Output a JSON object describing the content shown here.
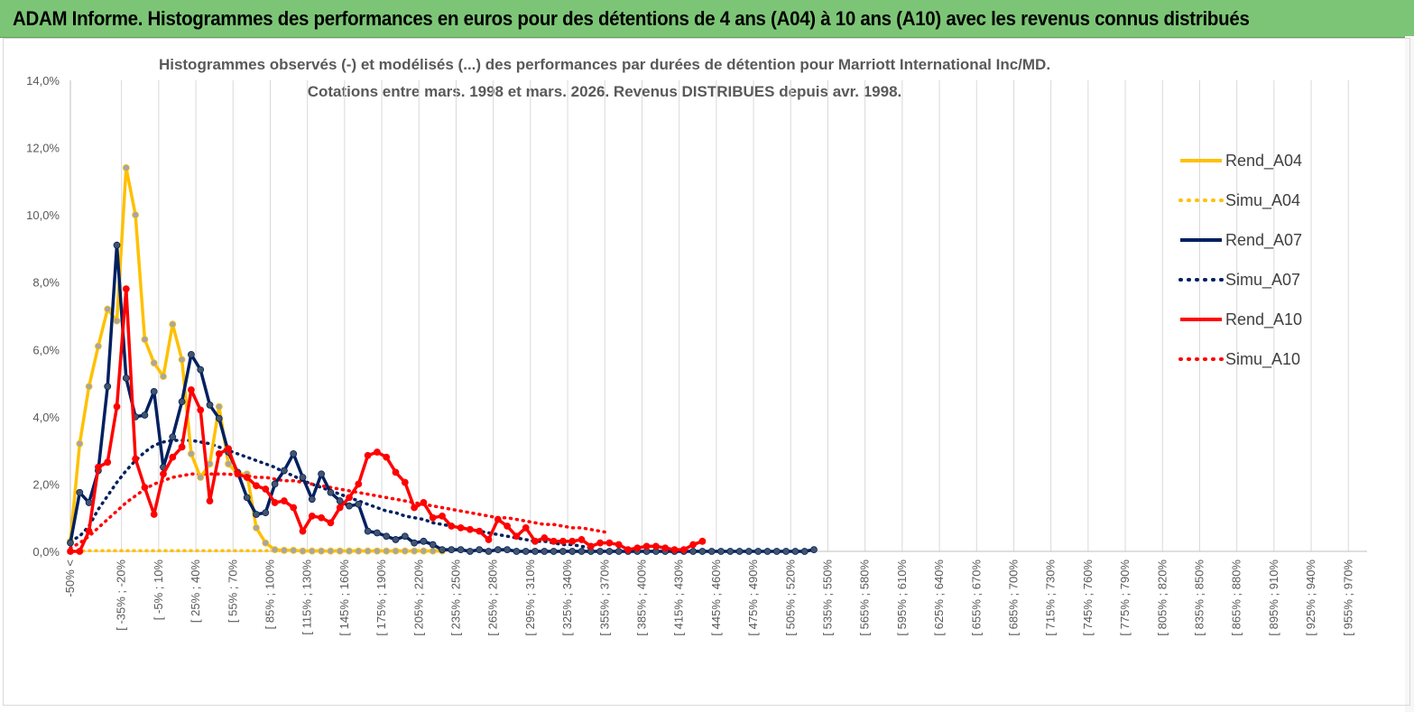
{
  "banner": {
    "title": "ADAM Informe. Histogrammes des performances en euros pour des détentions de 4 ans (A04) à 10 ans (A10) avec les revenus connus distribués"
  },
  "chart_data": {
    "type": "line",
    "title": "Histogrammes observés (-) et modélisés (...) des performances par durées de détention pour Marriott International Inc/MD.",
    "subtitle": "Cotations entre mars. 1998 et mars. 2026. Revenus DISTRIBUES depuis avr. 1998.",
    "ylim": [
      0,
      14
    ],
    "y_ticks": [
      "0,0%",
      "2,0%",
      "4,0%",
      "6,0%",
      "8,0%",
      "10,0%",
      "12,0%",
      "14,0%"
    ],
    "x_tick_labels": [
      "-50% <",
      "[ -35% ; -20%",
      "[ -5% ; 10%",
      "[ 25% ; 40%",
      "[ 55% ; 70%",
      "[ 85% ; 100%",
      "[ 115% ; 130%",
      "[ 145% ; 160%",
      "[ 175% ; 190%",
      "[ 205% ; 220%",
      "[ 235% ; 250%",
      "[ 265% ; 280%",
      "[ 295% ; 310%",
      "[ 325% ; 340%",
      "[ 355% ; 370%",
      "[ 385% ; 400%",
      "[ 415% ; 430%",
      "[ 445% ; 460%",
      "[ 475% ; 490%",
      "[ 505% ; 520%",
      "[ 535% ; 550%",
      "[ 565% ; 580%",
      "[ 595% ; 610%",
      "[ 625% ; 640%",
      "[ 655% ; 670%",
      "[ 685% ; 700%",
      "[ 715% ; 730%",
      "[ 745% ; 760%",
      "[ 775% ; 790%",
      "[ 805% ; 820%",
      "[ 835% ; 850%",
      "[ 865% ; 880%",
      "[ 895% ; 910%",
      "[ 925% ; 940%",
      "[ 955% ; 970%"
    ],
    "grid": "vertical lines",
    "legend_position": "right",
    "series": [
      {
        "name": "Rend_A04",
        "color": "#FFC000",
        "style": "solid-markers",
        "values": [
          0.3,
          3.2,
          4.9,
          6.1,
          7.2,
          6.85,
          11.4,
          10.0,
          6.3,
          5.6,
          5.2,
          6.75,
          5.7,
          2.9,
          2.2,
          2.6,
          4.3,
          2.6,
          2.3,
          2.3,
          0.7,
          0.25,
          0.05,
          0.03,
          0.03,
          0.01,
          0.01,
          0.01,
          0.01,
          0.01,
          0.01,
          0.01,
          0.01,
          0.01,
          0.01,
          0.01,
          0.01,
          0.01,
          0.01,
          0.01,
          0.01
        ]
      },
      {
        "name": "Simu_A04",
        "color": "#FFC000",
        "style": "dotted",
        "values": [
          0.0,
          0.01,
          0.02,
          0.02,
          0.02,
          0.02,
          0.02,
          0.02,
          0.02,
          0.02,
          0.02,
          0.02,
          0.02,
          0.02,
          0.02,
          0.02,
          0.02,
          0.02,
          0.02,
          0.02,
          0.02,
          0.02,
          0.02,
          0.02,
          0.02,
          0.02,
          0.02,
          0.02,
          0.02,
          0.02,
          0.02,
          0.02,
          0.02,
          0.02,
          0.02,
          0.02,
          0.02,
          0.02,
          0.02,
          0.02,
          0.02,
          0.02
        ]
      },
      {
        "name": "Rend_A07",
        "color": "#002060",
        "style": "solid-markers",
        "values": [
          0.25,
          1.75,
          1.45,
          2.4,
          4.9,
          9.1,
          5.15,
          4.0,
          4.05,
          4.75,
          2.5,
          3.4,
          4.45,
          5.85,
          5.4,
          4.35,
          3.95,
          2.95,
          2.35,
          1.6,
          1.1,
          1.15,
          2.0,
          2.4,
          2.9,
          2.2,
          1.55,
          2.3,
          1.75,
          1.5,
          1.35,
          1.4,
          0.6,
          0.55,
          0.45,
          0.35,
          0.45,
          0.25,
          0.3,
          0.2,
          0.05,
          0.05,
          0.05,
          0.0,
          0.05,
          0.0,
          0.05,
          0.05,
          0.0,
          0.0,
          0.0,
          0.0,
          0.0,
          0.0,
          0.0,
          0.0,
          0.0,
          0.0,
          0.0,
          0.0,
          0.0,
          0.0,
          0.0,
          0.0,
          0.0,
          0.0,
          0.0,
          0.0,
          0.0,
          0.0,
          0.0,
          0.0,
          0.0,
          0.0,
          0.0,
          0.0,
          0.0,
          0.0,
          0.0,
          0.0,
          0.05
        ]
      },
      {
        "name": "Simu_A07",
        "color": "#002060",
        "style": "dotted",
        "values": [
          0.3,
          0.45,
          0.75,
          1.25,
          1.65,
          2.05,
          2.4,
          2.7,
          2.95,
          3.15,
          3.25,
          3.3,
          3.3,
          3.3,
          3.25,
          3.2,
          3.1,
          3.0,
          2.9,
          2.8,
          2.7,
          2.6,
          2.5,
          2.35,
          2.25,
          2.1,
          2.0,
          1.9,
          1.8,
          1.7,
          1.6,
          1.5,
          1.4,
          1.3,
          1.2,
          1.15,
          1.05,
          1.0,
          0.95,
          0.85,
          0.8,
          0.75,
          0.7,
          0.65,
          0.6,
          0.55,
          0.5,
          0.45,
          0.4,
          0.35,
          0.3,
          0.3,
          0.25,
          0.2,
          0.2,
          0.15,
          0.1
        ]
      },
      {
        "name": "Rend_A10",
        "color": "#FF0000",
        "style": "solid-markers",
        "values": [
          0.0,
          0.0,
          0.6,
          2.5,
          2.65,
          4.3,
          7.8,
          2.75,
          1.9,
          1.1,
          2.3,
          2.8,
          3.1,
          4.8,
          4.2,
          1.5,
          2.9,
          3.05,
          2.3,
          2.2,
          1.95,
          1.85,
          1.45,
          1.5,
          1.3,
          0.6,
          1.05,
          1.0,
          0.85,
          1.3,
          1.6,
          2.0,
          2.85,
          2.95,
          2.8,
          2.35,
          2.05,
          1.3,
          1.45,
          1.0,
          1.05,
          0.75,
          0.7,
          0.65,
          0.6,
          0.35,
          0.95,
          0.75,
          0.45,
          0.7,
          0.3,
          0.4,
          0.3,
          0.3,
          0.3,
          0.35,
          0.15,
          0.25,
          0.25,
          0.2,
          0.05,
          0.1,
          0.15,
          0.15,
          0.1,
          0.05,
          0.05,
          0.2,
          0.3
        ]
      },
      {
        "name": "Simu_A10",
        "color": "#FF0000",
        "style": "dotted",
        "values": [
          0.1,
          0.25,
          0.45,
          0.7,
          0.95,
          1.2,
          1.45,
          1.65,
          1.85,
          2.0,
          2.1,
          2.2,
          2.25,
          2.3,
          2.3,
          2.3,
          2.3,
          2.3,
          2.25,
          2.25,
          2.2,
          2.2,
          2.15,
          2.1,
          2.1,
          2.05,
          2.0,
          1.95,
          1.9,
          1.85,
          1.8,
          1.75,
          1.7,
          1.65,
          1.6,
          1.55,
          1.5,
          1.45,
          1.4,
          1.35,
          1.3,
          1.25,
          1.2,
          1.15,
          1.1,
          1.05,
          1.0,
          1.0,
          0.95,
          0.9,
          0.85,
          0.8,
          0.8,
          0.75,
          0.7,
          0.7,
          0.65,
          0.6,
          0.55
        ]
      }
    ]
  }
}
